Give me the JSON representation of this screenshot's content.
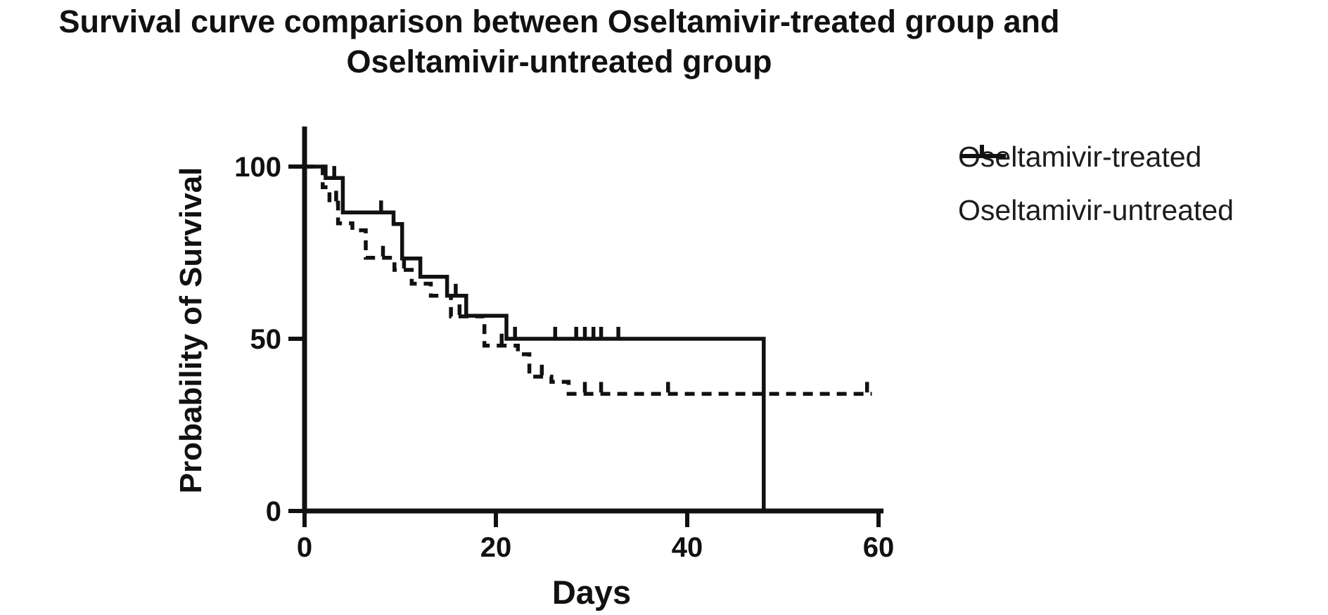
{
  "title": {
    "line1": "Survival curve comparison between Oseltamivir-treated group and",
    "line2": "Oseltamivir-untreated group"
  },
  "colors": {
    "ink": "#111111",
    "background": "#ffffff"
  },
  "chart_data": {
    "type": "line",
    "subtype": "kaplan-meier-step-curves",
    "title": "Survival curve comparison between Oseltamivir-treated group and Oseltamivir-untreated group",
    "xlabel": "Days",
    "ylabel": "Probability of Survival",
    "xlim": [
      0,
      60
    ],
    "ylim": [
      0,
      100
    ],
    "xticks": [
      0,
      20,
      40,
      60
    ],
    "yticks": [
      0,
      50,
      100
    ],
    "x_tick_labels": [
      "0",
      "20",
      "40",
      "60"
    ],
    "y_tick_labels": [
      "0",
      "50",
      "100"
    ],
    "grid": false,
    "legend_position": "right",
    "series": [
      {
        "name": "Oseltamivir-treated",
        "line_style": "solid",
        "color": "#111111",
        "steps": [
          [
            0,
            100
          ],
          [
            2.2,
            96.7
          ],
          [
            4,
            86.7
          ],
          [
            9.3,
            83.3
          ],
          [
            10.2,
            73.3
          ],
          [
            12.1,
            68
          ],
          [
            14.9,
            62.5
          ],
          [
            16.9,
            56.7
          ],
          [
            21.1,
            50
          ],
          [
            48,
            0
          ]
        ],
        "end_day": 48,
        "censor_marks": [
          [
            3.1,
            96.7
          ],
          [
            8,
            86.7
          ],
          [
            15.8,
            62.5
          ],
          [
            22,
            50
          ],
          [
            26.2,
            50
          ],
          [
            28.4,
            50
          ],
          [
            29.3,
            50
          ],
          [
            30.2,
            50
          ],
          [
            31,
            50
          ],
          [
            32.8,
            50
          ]
        ]
      },
      {
        "name": "Oseltamivir-untreated",
        "line_style": "dashed",
        "color": "#111111",
        "steps": [
          [
            0,
            100
          ],
          [
            1.9,
            94
          ],
          [
            2.6,
            89.5
          ],
          [
            3.5,
            83.5
          ],
          [
            5,
            81.5
          ],
          [
            6.4,
            73.5
          ],
          [
            9.4,
            70
          ],
          [
            11.2,
            66
          ],
          [
            13.2,
            62.5
          ],
          [
            15.3,
            56.5
          ],
          [
            18.8,
            48
          ],
          [
            22.3,
            45.5
          ],
          [
            23.5,
            39
          ],
          [
            25.8,
            37.5
          ],
          [
            27.6,
            34
          ]
        ],
        "end_day": 59.3,
        "censor_marks": [
          [
            3.3,
            89.5
          ],
          [
            8.2,
            73.5
          ],
          [
            10.4,
            70
          ],
          [
            16.2,
            56.5
          ],
          [
            20.6,
            48
          ],
          [
            24.8,
            39
          ],
          [
            29.3,
            34
          ],
          [
            31,
            34
          ],
          [
            38,
            34
          ],
          [
            58.8,
            34
          ]
        ]
      }
    ],
    "legend": [
      {
        "label": "Oseltamivir-treated",
        "style": "solid"
      },
      {
        "label": "Oseltamivir-untreated",
        "style": "dashed"
      }
    ]
  }
}
